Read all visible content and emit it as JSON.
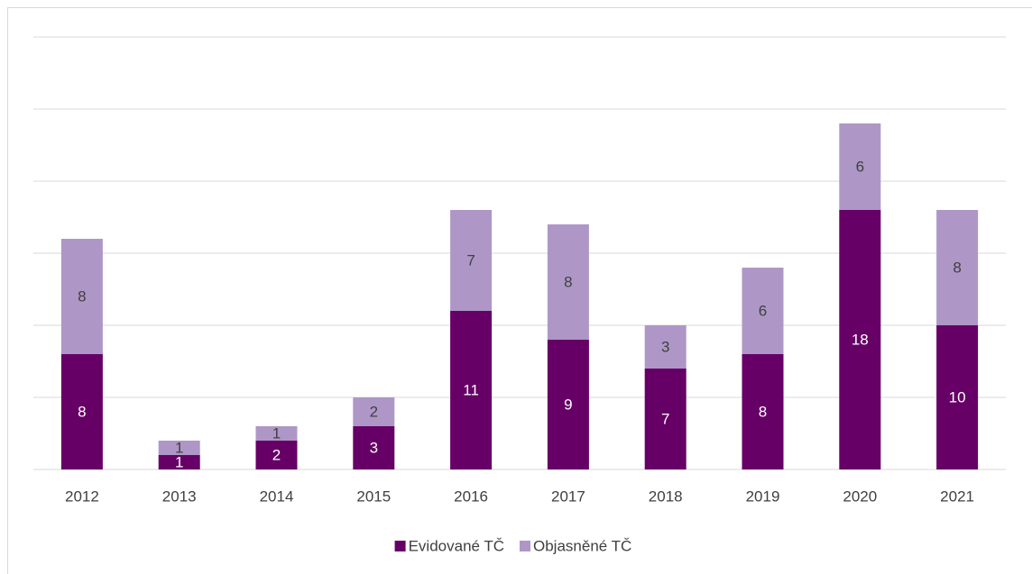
{
  "chart_data": {
    "type": "stacked_bar",
    "categories": [
      "2012",
      "2013",
      "2014",
      "2015",
      "2016",
      "2017",
      "2018",
      "2019",
      "2020",
      "2021"
    ],
    "series": [
      {
        "name": "Evidované TČ",
        "color": "#660066",
        "values": [
          8,
          1,
          2,
          3,
          11,
          9,
          7,
          8,
          18,
          10
        ]
      },
      {
        "name": "Objasněné TČ",
        "color": "#ae97c6",
        "values": [
          8,
          1,
          1,
          2,
          7,
          8,
          3,
          6,
          6,
          8
        ]
      }
    ],
    "ylim": [
      0,
      30
    ],
    "yticks": [
      0,
      5,
      10,
      15,
      20,
      25,
      30
    ],
    "grid": true,
    "legend": "bottom"
  }
}
